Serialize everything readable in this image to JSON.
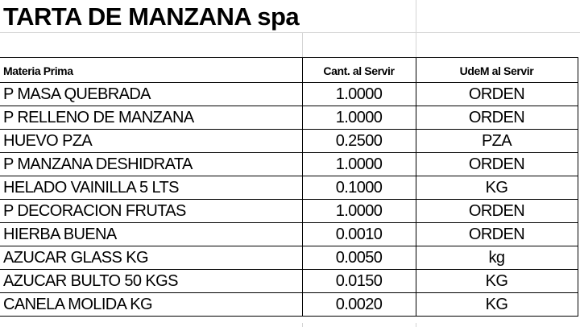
{
  "sheet": {
    "title": "TARTA DE MANZANA spa",
    "headers": [
      "Materia Prima",
      "Cant. al Servir",
      "UdeM al Servir"
    ],
    "rows": [
      [
        "P MASA QUEBRADA",
        "1.0000",
        "ORDEN"
      ],
      [
        "P RELLENO DE MANZANA",
        "1.0000",
        "ORDEN"
      ],
      [
        "HUEVO PZA",
        "0.2500",
        "PZA"
      ],
      [
        "P MANZANA DESHIDRATA",
        "1.0000",
        "ORDEN"
      ],
      [
        "HELADO VAINILLA 5 LTS",
        "0.1000",
        "KG"
      ],
      [
        "P DECORACION FRUTAS",
        "1.0000",
        "ORDEN"
      ],
      [
        "HIERBA BUENA",
        "0.0010",
        "ORDEN"
      ],
      [
        "AZUCAR GLASS KG",
        "0.0050",
        "kg"
      ],
      [
        "AZUCAR BULTO 50 KGS",
        "0.0150",
        "KG"
      ],
      [
        "CANELA MOLIDA  KG",
        "0.0020",
        "KG"
      ]
    ]
  }
}
